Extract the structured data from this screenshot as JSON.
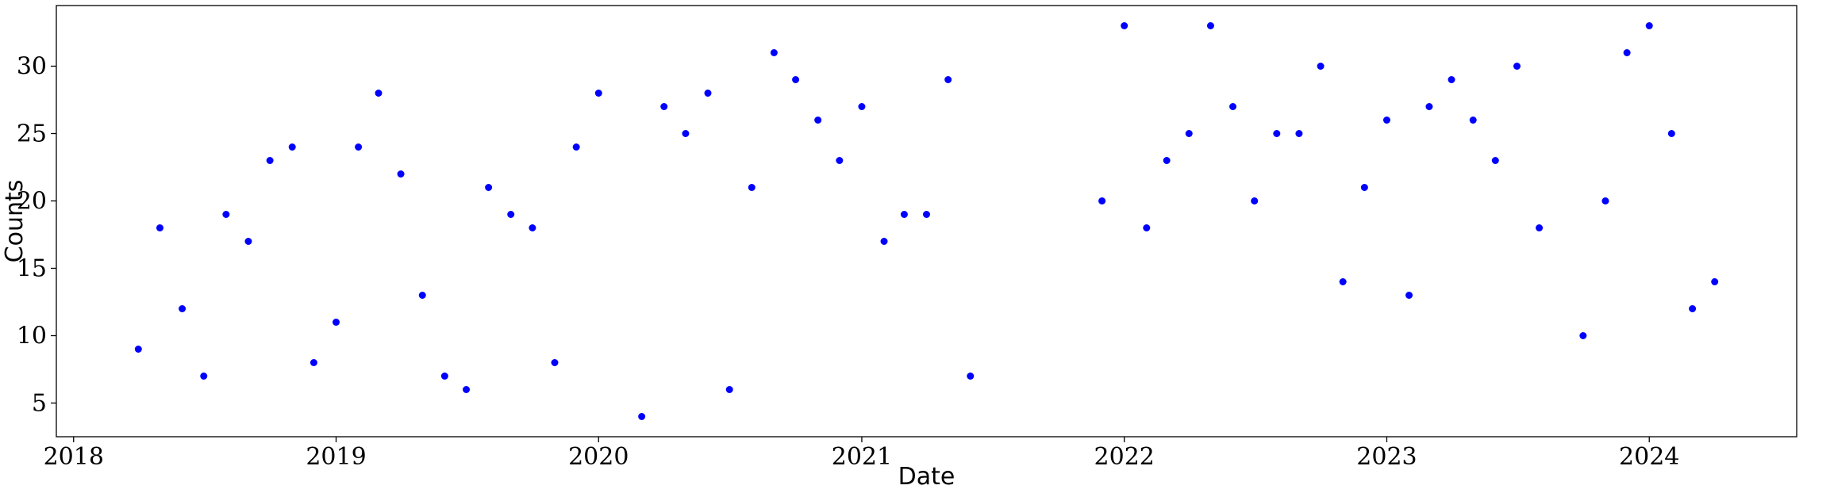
{
  "chart_data": {
    "type": "scatter",
    "title": "",
    "xlabel": "Date",
    "ylabel": "Counts",
    "x_axis": "date",
    "xlim": [
      "2017-12-08",
      "2024-07-24"
    ],
    "ylim": [
      2.5,
      34.5
    ],
    "xticks": [
      "2018-01-01",
      "2019-01-01",
      "2020-01-01",
      "2021-01-01",
      "2022-01-01",
      "2023-01-01",
      "2024-01-01"
    ],
    "xtick_labels": [
      "2018",
      "2019",
      "2020",
      "2021",
      "2022",
      "2023",
      "2024"
    ],
    "yticks": [
      5,
      10,
      15,
      20,
      25,
      30
    ],
    "ytick_labels": [
      "5",
      "10",
      "15",
      "20",
      "25",
      "30"
    ],
    "grid": false,
    "legend": "none",
    "marker_color": "#0000ff",
    "series": [
      {
        "x": [
          "2018-04-01",
          "2018-05-01",
          "2018-06-01",
          "2018-07-01",
          "2018-08-01",
          "2018-09-01",
          "2018-10-01",
          "2018-11-01",
          "2018-12-01",
          "2019-01-01",
          "2019-02-01",
          "2019-03-01",
          "2019-04-01",
          "2019-05-01",
          "2019-06-01",
          "2019-07-01",
          "2019-08-01",
          "2019-09-01",
          "2019-10-01",
          "2019-11-01",
          "2019-12-01",
          "2020-01-01",
          "2020-03-01",
          "2020-04-01",
          "2020-05-01",
          "2020-06-01",
          "2020-07-01",
          "2020-08-01",
          "2020-09-01",
          "2020-10-01",
          "2020-11-01",
          "2020-12-01",
          "2021-01-01",
          "2021-02-01",
          "2021-03-01",
          "2021-04-01",
          "2021-05-01",
          "2021-06-01",
          "2021-12-01",
          "2022-01-01",
          "2022-02-01",
          "2022-03-01",
          "2022-04-01",
          "2022-05-01",
          "2022-06-01",
          "2022-07-01",
          "2022-08-01",
          "2022-09-01",
          "2022-10-01",
          "2022-11-01",
          "2022-12-01",
          "2023-01-01",
          "2023-02-01",
          "2023-03-01",
          "2023-04-01",
          "2023-05-01",
          "2023-06-01",
          "2023-07-01",
          "2023-08-01",
          "2023-10-01",
          "2023-11-01",
          "2023-12-01",
          "2024-01-01",
          "2024-02-01",
          "2024-03-01",
          "2024-04-01"
        ],
        "y": [
          9,
          18,
          12,
          7,
          19,
          17,
          23,
          24,
          8,
          11,
          24,
          28,
          22,
          13,
          7,
          6,
          21,
          19,
          18,
          8,
          24,
          28,
          4,
          27,
          25,
          28,
          6,
          21,
          31,
          29,
          26,
          23,
          27,
          17,
          19,
          19,
          29,
          7,
          20,
          33,
          18,
          23,
          25,
          33,
          27,
          20,
          25,
          25,
          30,
          14,
          21,
          26,
          13,
          27,
          29,
          26,
          23,
          30,
          18,
          10,
          20,
          31,
          33,
          25,
          12,
          14
        ]
      }
    ]
  }
}
